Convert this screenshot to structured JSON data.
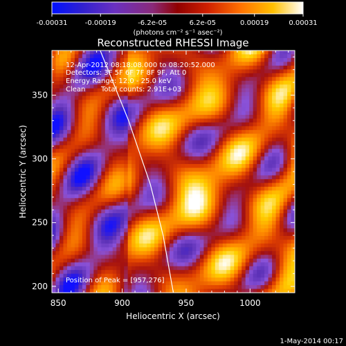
{
  "chart_data": {
    "type": "heatmap",
    "title": "Reconstructed RHESSI Image",
    "xlabel": "Heliocentric X (arcsec)",
    "ylabel": "Heliocentric Y (arcsec)",
    "xlim": [
      845,
      1035
    ],
    "ylim": [
      195,
      385
    ],
    "x_ticks": [
      850,
      900,
      950,
      1000
    ],
    "y_ticks": [
      200,
      250,
      300,
      350
    ],
    "colorbar": {
      "range": [
        -0.00031,
        0.00031
      ],
      "tick_values": [
        -0.00031,
        -0.00019,
        -6.2e-05,
        6.2e-05,
        0.00019,
        0.00031
      ],
      "tick_labels": [
        "-0.00031",
        "-0.00019",
        "-6.2e-05",
        "6.2e-05",
        "0.00019",
        "0.00031"
      ],
      "unit_label": "(photons cm⁻² s⁻¹ asec⁻²)"
    },
    "annotations": {
      "time_range": "12-Apr-2012 08:18:08.000 to 08:20:52.000",
      "detectors": "Detectors: 3F 5F 6F 7F 8F 9F, Att 0",
      "energy": "Energy Range: 12.0 - 25.0 keV",
      "method": "Clean",
      "counts": "Total counts: 2.91E+03",
      "peak": "Position of Peak = [957,276]"
    },
    "features": {
      "peak_position": [
        957,
        276
      ],
      "limb_arc": [
        [
          882,
          387
        ],
        [
          905,
          330
        ],
        [
          922,
          280
        ],
        [
          932,
          240
        ],
        [
          940,
          195
        ]
      ],
      "colormap_stops": [
        "#1010ff",
        "#5a2fb5",
        "#8a52d8",
        "#a21010",
        "#e04000",
        "#ff8c00",
        "#ffd000",
        "#ffffff"
      ]
    },
    "grid": false,
    "legend": "none"
  },
  "footer": {
    "date": "1-May-2014 00:17"
  }
}
